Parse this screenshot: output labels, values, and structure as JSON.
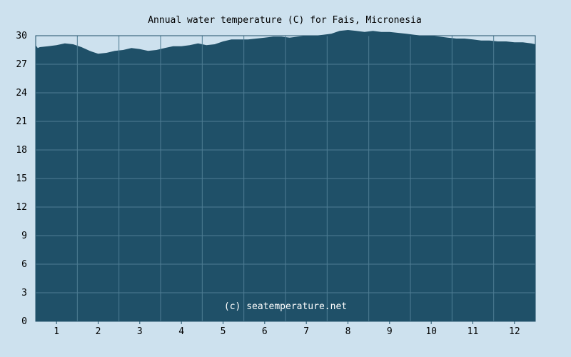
{
  "chart_data": {
    "type": "area",
    "title": "Annual water temperature (C) for Fais, Micronesia",
    "watermark": "(c) seatemperature.net",
    "xlabel": "",
    "ylabel": "",
    "ylim": [
      0,
      30
    ],
    "xlim": [
      0.5,
      12.5
    ],
    "y_ticks": [
      0,
      3,
      6,
      9,
      12,
      15,
      18,
      21,
      24,
      27,
      30
    ],
    "x_ticks": [
      1,
      2,
      3,
      4,
      5,
      6,
      7,
      8,
      9,
      10,
      11,
      12
    ],
    "grid": true,
    "colors": {
      "background": "#cde1ee",
      "fill": "#1f5068",
      "grid": "#4f7d94",
      "axis": "#1f5068"
    },
    "series": [
      {
        "x": [
          0.5,
          0.55,
          0.6,
          0.8,
          1.0,
          1.2,
          1.4,
          1.6,
          1.8,
          2.0,
          2.2,
          2.4,
          2.6,
          2.8,
          3.0,
          3.2,
          3.4,
          3.6,
          3.8,
          4.0,
          4.2,
          4.4,
          4.6,
          4.8,
          5.0,
          5.2,
          5.4,
          5.6,
          5.8,
          6.0,
          6.2,
          6.4,
          6.6,
          6.8,
          7.0,
          7.2,
          7.4,
          7.6,
          7.8,
          8.0,
          8.2,
          8.4,
          8.6,
          8.8,
          9.0,
          9.2,
          9.4,
          9.6,
          9.8,
          10.0,
          10.2,
          10.4,
          10.6,
          10.8,
          11.0,
          11.2,
          11.4,
          11.6,
          11.8,
          12.0,
          12.2,
          12.4,
          12.5
        ],
        "values": [
          29.0,
          28.7,
          28.8,
          28.9,
          29.0,
          29.2,
          29.1,
          28.8,
          28.4,
          28.1,
          28.2,
          28.4,
          28.5,
          28.7,
          28.6,
          28.4,
          28.5,
          28.7,
          28.9,
          28.9,
          29.0,
          29.2,
          29.0,
          29.1,
          29.4,
          29.6,
          29.6,
          29.6,
          29.7,
          29.8,
          29.9,
          29.9,
          29.8,
          29.9,
          30.0,
          30.0,
          30.1,
          30.2,
          30.5,
          30.6,
          30.5,
          30.4,
          30.5,
          30.4,
          30.4,
          30.3,
          30.2,
          30.1,
          30.0,
          30.0,
          29.9,
          29.8,
          29.7,
          29.7,
          29.6,
          29.5,
          29.5,
          29.4,
          29.4,
          29.3,
          29.3,
          29.2,
          29.1
        ]
      }
    ]
  }
}
